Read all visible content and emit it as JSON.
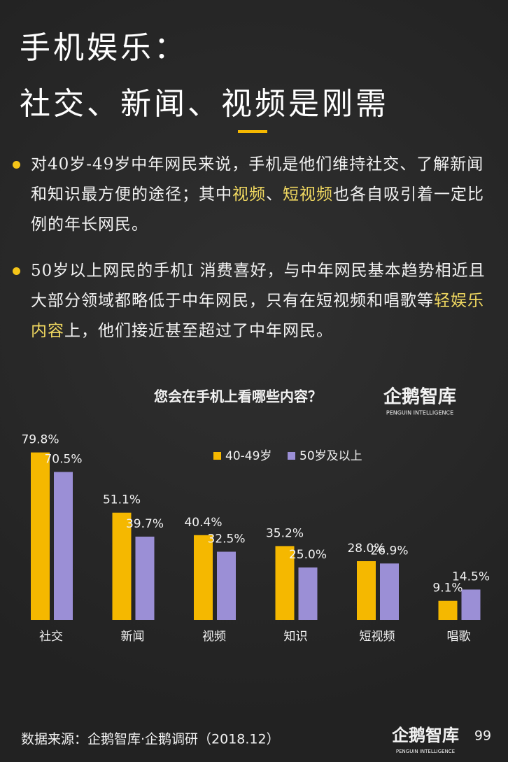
{
  "header": {
    "title_line1": "手机娱乐：",
    "title_line2": "社交、新闻、视频是刚需"
  },
  "bullets": [
    [
      {
        "text": "对40岁-49岁中年网民来说，手机是他们维持社交、了解新闻和知识最方便的途径；其中",
        "highlight": false
      },
      {
        "text": "视频",
        "highlight": true
      },
      {
        "text": "、",
        "highlight": false
      },
      {
        "text": "短视频",
        "highlight": true
      },
      {
        "text": "也各自吸引着一定比例的年长网民。",
        "highlight": false
      }
    ],
    [
      {
        "text": "50岁以上网民的手机I 消费喜好，与中年网民基本趋势相近且大部分领域都略低于中年网民，只有在短视频和唱歌等",
        "highlight": false
      },
      {
        "text": "轻娱乐内容",
        "highlight": true
      },
      {
        "text": "上，他们接近甚至超过了中年网民。",
        "highlight": false
      }
    ]
  ],
  "logo": {
    "name": "企鹅智库",
    "tagline": "PENGUIN INTELLIGENCE"
  },
  "chart_data": {
    "type": "bar",
    "title": "您会在手机上看哪些内容？",
    "categories": [
      "社交",
      "新闻",
      "视频",
      "知识",
      "短视频",
      "唱歌"
    ],
    "series": [
      {
        "name": "40-49岁",
        "color": "#f5b800",
        "values": [
          79.8,
          51.1,
          40.4,
          35.2,
          28.0,
          9.1
        ],
        "value_labels": [
          "79.8%",
          "51.1%",
          "40.4%",
          "35.2%",
          "28.0%",
          "9.1%"
        ]
      },
      {
        "name": "50岁及以上",
        "color": "#9b8fd6",
        "values": [
          70.5,
          39.7,
          32.5,
          25.0,
          26.9,
          14.5
        ],
        "value_labels": [
          "70.5%",
          "39.7%",
          "32.5%",
          "25.0%",
          "26.9%",
          "14.5%"
        ]
      }
    ]
  },
  "footer": {
    "source": "数据来源：企鹅智库·企鹅调研（2018.12）",
    "page": "99"
  }
}
